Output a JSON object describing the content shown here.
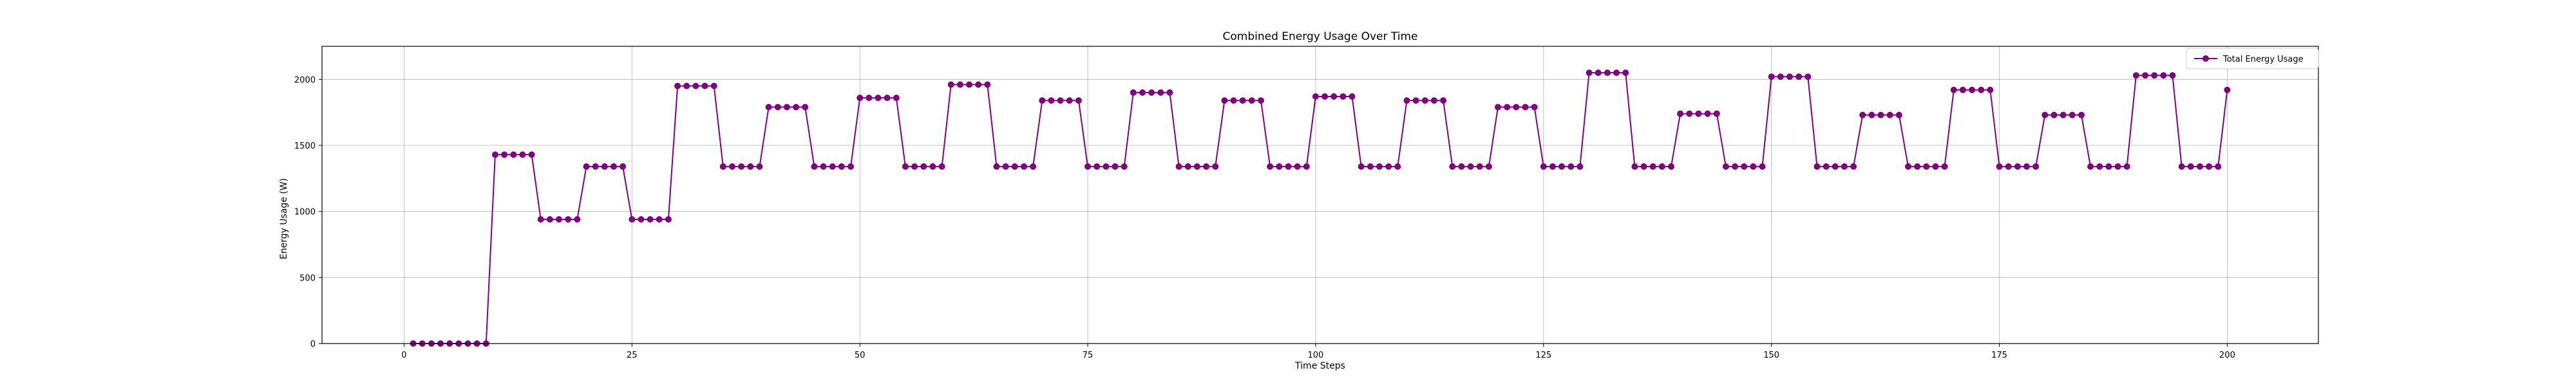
{
  "chart_data": {
    "type": "line",
    "title": "Combined Energy Usage Over Time",
    "xlabel": "Time Steps",
    "ylabel": "Energy Usage (W)",
    "xlim": [
      -9,
      210
    ],
    "ylim": [
      0,
      2250
    ],
    "xticks": [
      0,
      25,
      50,
      75,
      100,
      125,
      150,
      175,
      200
    ],
    "yticks": [
      0,
      500,
      1000,
      1500,
      2000
    ],
    "grid": true,
    "legend_position": "top-right",
    "color": "#800080",
    "series": [
      {
        "name": "Total Energy Usage",
        "levels": [
          {
            "start": 1,
            "end": 9,
            "value": 0
          },
          {
            "start": 10,
            "end": 14,
            "value": 1430
          },
          {
            "start": 15,
            "end": 19,
            "value": 940
          },
          {
            "start": 20,
            "end": 24,
            "value": 1340
          },
          {
            "start": 25,
            "end": 29,
            "value": 940
          },
          {
            "start": 30,
            "end": 34,
            "value": 1950
          },
          {
            "start": 35,
            "end": 39,
            "value": 1340
          },
          {
            "start": 40,
            "end": 44,
            "value": 1790
          },
          {
            "start": 45,
            "end": 49,
            "value": 1340
          },
          {
            "start": 50,
            "end": 54,
            "value": 1860
          },
          {
            "start": 55,
            "end": 59,
            "value": 1340
          },
          {
            "start": 60,
            "end": 64,
            "value": 1960
          },
          {
            "start": 65,
            "end": 69,
            "value": 1340
          },
          {
            "start": 70,
            "end": 74,
            "value": 1840
          },
          {
            "start": 75,
            "end": 79,
            "value": 1340
          },
          {
            "start": 80,
            "end": 84,
            "value": 1900
          },
          {
            "start": 85,
            "end": 89,
            "value": 1340
          },
          {
            "start": 90,
            "end": 94,
            "value": 1840
          },
          {
            "start": 95,
            "end": 99,
            "value": 1340
          },
          {
            "start": 100,
            "end": 104,
            "value": 1870
          },
          {
            "start": 105,
            "end": 109,
            "value": 1340
          },
          {
            "start": 110,
            "end": 114,
            "value": 1840
          },
          {
            "start": 115,
            "end": 119,
            "value": 1340
          },
          {
            "start": 120,
            "end": 124,
            "value": 1790
          },
          {
            "start": 125,
            "end": 129,
            "value": 1340
          },
          {
            "start": 130,
            "end": 134,
            "value": 2050
          },
          {
            "start": 135,
            "end": 139,
            "value": 1340
          },
          {
            "start": 140,
            "end": 144,
            "value": 1740
          },
          {
            "start": 145,
            "end": 149,
            "value": 1340
          },
          {
            "start": 150,
            "end": 154,
            "value": 2020
          },
          {
            "start": 155,
            "end": 159,
            "value": 1340
          },
          {
            "start": 160,
            "end": 164,
            "value": 1730
          },
          {
            "start": 165,
            "end": 169,
            "value": 1340
          },
          {
            "start": 170,
            "end": 174,
            "value": 1920
          },
          {
            "start": 175,
            "end": 179,
            "value": 1340
          },
          {
            "start": 180,
            "end": 184,
            "value": 1730
          },
          {
            "start": 185,
            "end": 189,
            "value": 1340
          },
          {
            "start": 190,
            "end": 194,
            "value": 2030
          },
          {
            "start": 195,
            "end": 199,
            "value": 1340
          },
          {
            "start": 200,
            "end": 200,
            "value": 1920
          }
        ]
      }
    ]
  }
}
